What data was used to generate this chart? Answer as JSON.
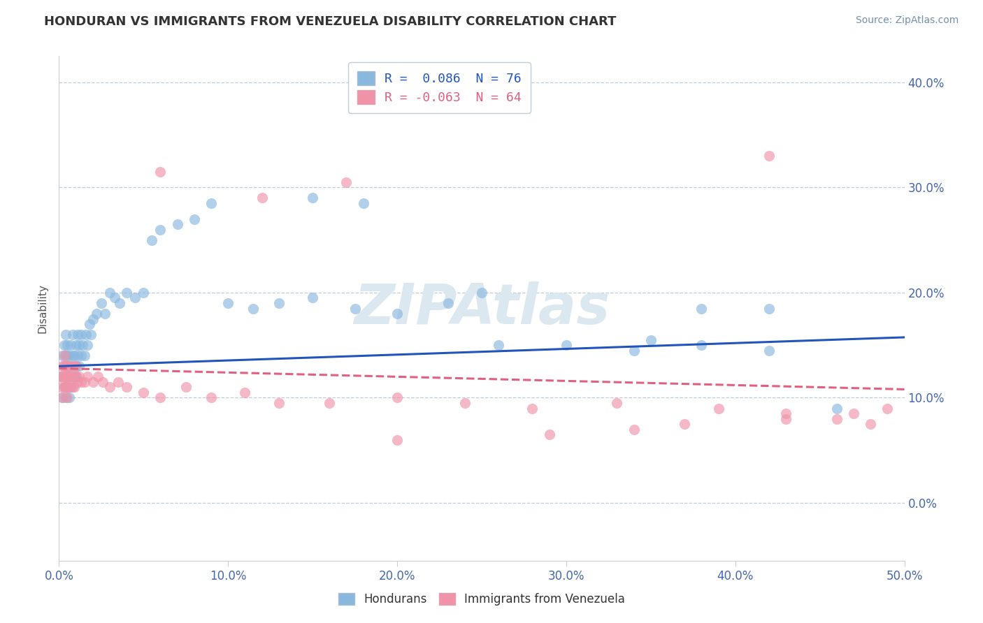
{
  "title": "HONDURAN VS IMMIGRANTS FROM VENEZUELA DISABILITY CORRELATION CHART",
  "source": "Source: ZipAtlas.com",
  "ylabel": "Disability",
  "xlim": [
    0.0,
    0.5
  ],
  "ylim": [
    -0.055,
    0.425
  ],
  "yticks": [
    0.0,
    0.1,
    0.2,
    0.3,
    0.4
  ],
  "xticks": [
    0.0,
    0.1,
    0.2,
    0.3,
    0.4,
    0.5
  ],
  "legend_entries": [
    {
      "label": "R =  0.086  N = 76"
    },
    {
      "label": "R = -0.063  N = 64"
    }
  ],
  "legend_labels": [
    "Hondurans",
    "Immigrants from Venezuela"
  ],
  "series1_color": "#89b8df",
  "series2_color": "#f093a8",
  "trend1_color": "#2255bb",
  "trend2_color": "#e06080",
  "watermark": "ZIPAtlas",
  "watermark_color": "#dce8f0",
  "background_color": "#ffffff",
  "title_color": "#333333",
  "axis_label_color": "#4466aa",
  "trend1_intercept": 0.13,
  "trend1_slope": 0.055,
  "trend2_intercept": 0.128,
  "trend2_slope": -0.04,
  "series1_x": [
    0.001,
    0.002,
    0.002,
    0.003,
    0.003,
    0.003,
    0.004,
    0.004,
    0.004,
    0.004,
    0.005,
    0.005,
    0.005,
    0.005,
    0.005,
    0.006,
    0.006,
    0.006,
    0.006,
    0.007,
    0.007,
    0.007,
    0.008,
    0.008,
    0.008,
    0.009,
    0.009,
    0.01,
    0.01,
    0.01,
    0.011,
    0.011,
    0.012,
    0.012,
    0.013,
    0.013,
    0.014,
    0.015,
    0.016,
    0.017,
    0.018,
    0.019,
    0.02,
    0.022,
    0.025,
    0.027,
    0.03,
    0.033,
    0.036,
    0.04,
    0.045,
    0.05,
    0.055,
    0.06,
    0.07,
    0.08,
    0.09,
    0.1,
    0.115,
    0.13,
    0.15,
    0.175,
    0.2,
    0.23,
    0.26,
    0.3,
    0.34,
    0.38,
    0.42,
    0.46,
    0.38,
    0.42,
    0.15,
    0.18,
    0.25,
    0.35
  ],
  "series1_y": [
    0.12,
    0.14,
    0.1,
    0.13,
    0.15,
    0.11,
    0.12,
    0.14,
    0.16,
    0.1,
    0.13,
    0.15,
    0.11,
    0.12,
    0.14,
    0.12,
    0.13,
    0.1,
    0.14,
    0.15,
    0.12,
    0.11,
    0.14,
    0.13,
    0.16,
    0.12,
    0.14,
    0.15,
    0.13,
    0.12,
    0.16,
    0.14,
    0.15,
    0.13,
    0.14,
    0.16,
    0.15,
    0.14,
    0.16,
    0.15,
    0.17,
    0.16,
    0.175,
    0.18,
    0.19,
    0.18,
    0.2,
    0.195,
    0.19,
    0.2,
    0.195,
    0.2,
    0.25,
    0.26,
    0.265,
    0.27,
    0.285,
    0.19,
    0.185,
    0.19,
    0.195,
    0.185,
    0.18,
    0.19,
    0.15,
    0.15,
    0.145,
    0.15,
    0.145,
    0.09,
    0.185,
    0.185,
    0.29,
    0.285,
    0.2,
    0.155
  ],
  "series2_x": [
    0.001,
    0.001,
    0.002,
    0.002,
    0.002,
    0.003,
    0.003,
    0.003,
    0.003,
    0.004,
    0.004,
    0.004,
    0.005,
    0.005,
    0.005,
    0.005,
    0.006,
    0.006,
    0.006,
    0.007,
    0.007,
    0.008,
    0.008,
    0.009,
    0.009,
    0.01,
    0.01,
    0.011,
    0.012,
    0.013,
    0.015,
    0.017,
    0.02,
    0.023,
    0.026,
    0.03,
    0.035,
    0.04,
    0.05,
    0.06,
    0.075,
    0.09,
    0.11,
    0.13,
    0.16,
    0.2,
    0.24,
    0.28,
    0.33,
    0.39,
    0.43,
    0.46,
    0.47,
    0.48,
    0.49,
    0.37,
    0.43,
    0.2,
    0.29,
    0.34,
    0.12,
    0.17,
    0.06,
    0.42
  ],
  "series2_y": [
    0.12,
    0.11,
    0.13,
    0.1,
    0.12,
    0.13,
    0.11,
    0.12,
    0.14,
    0.11,
    0.12,
    0.13,
    0.12,
    0.11,
    0.13,
    0.1,
    0.12,
    0.13,
    0.11,
    0.12,
    0.13,
    0.11,
    0.12,
    0.13,
    0.11,
    0.12,
    0.13,
    0.115,
    0.12,
    0.115,
    0.115,
    0.12,
    0.115,
    0.12,
    0.115,
    0.11,
    0.115,
    0.11,
    0.105,
    0.1,
    0.11,
    0.1,
    0.105,
    0.095,
    0.095,
    0.1,
    0.095,
    0.09,
    0.095,
    0.09,
    0.085,
    0.08,
    0.085,
    0.075,
    0.09,
    0.075,
    0.08,
    0.06,
    0.065,
    0.07,
    0.29,
    0.305,
    0.315,
    0.33
  ]
}
